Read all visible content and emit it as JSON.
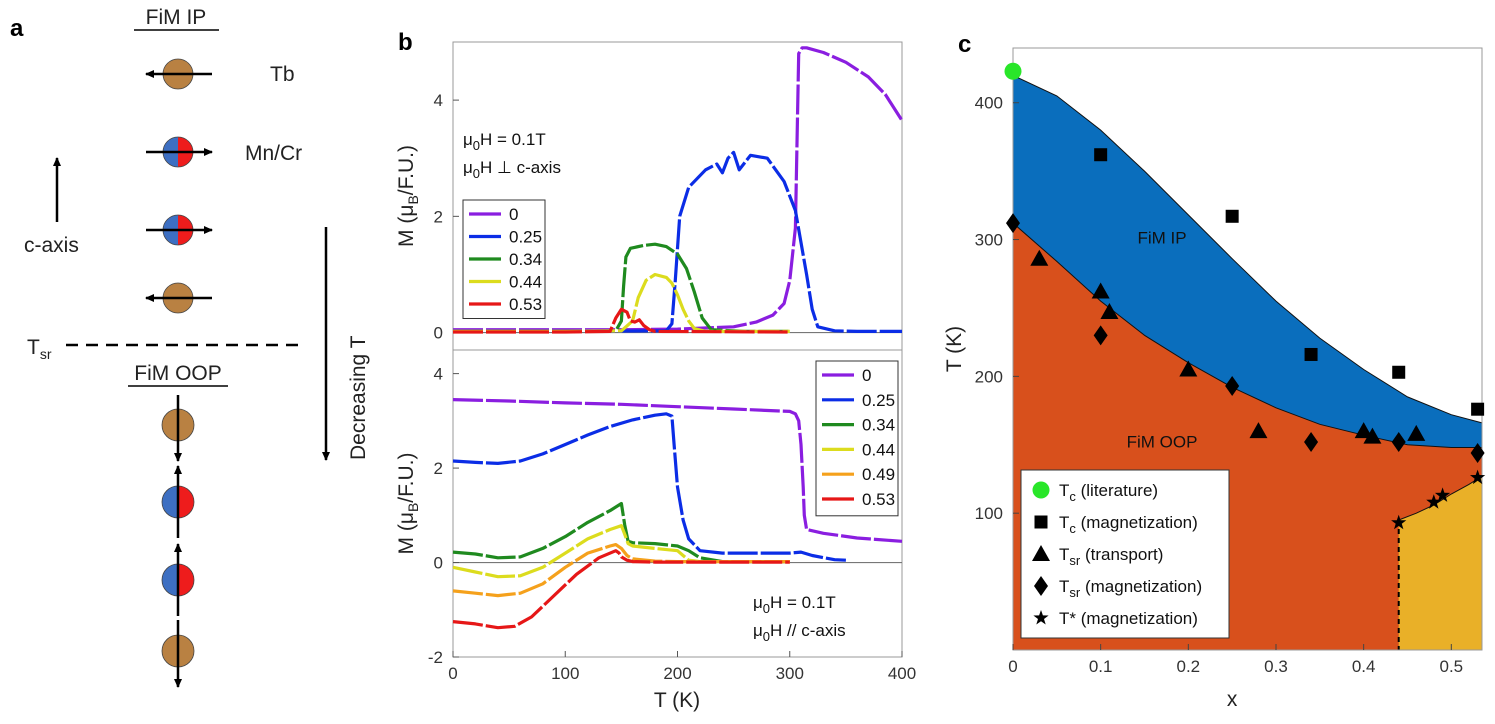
{
  "panels": {
    "a": "a",
    "b": "b",
    "c": "c"
  },
  "diagram": {
    "fim_ip": "FiM IP",
    "fim_oop": "FiM OOP",
    "tb": "Tb",
    "mncr": "Mn/Cr",
    "caxis": "c-axis",
    "tsr_main": "T",
    "tsr_sub": "sr",
    "decreasing": "Decreasing T"
  },
  "colors": {
    "tb": "#b98142",
    "mn_blue": "#3d6fc2",
    "cr_red": "#ee1c1c",
    "blue_region": "#0a6ebd",
    "orange_region": "#d8501c",
    "yellow_region": "#e9b028",
    "green_dot": "#29e629",
    "s0": "#8a1ee0",
    "s025": "#0b2de6",
    "s034": "#1f8a1f",
    "s044": "#dcdc1e",
    "s049": "#f5a11c",
    "s053": "#e61717"
  },
  "chart_data": [
    {
      "id": "b_top",
      "type": "line",
      "title": "",
      "xlabel": "T (K)",
      "ylabel": "M (μB/F.U.)",
      "xlim": [
        0,
        400
      ],
      "ylim": [
        -0.3,
        5.0
      ],
      "yticks": [
        0,
        2,
        4
      ],
      "annotation": [
        "μ0H = 0.1T",
        "μ0H ⊥ c-axis"
      ],
      "legend": [
        "0",
        "0.25",
        "0.34",
        "0.44",
        "0.53"
      ],
      "series": [
        {
          "name": "0",
          "color": "#8a1ee0",
          "x": [
            0,
            50,
            100,
            150,
            200,
            250,
            270,
            285,
            295,
            300,
            305,
            308,
            311,
            315,
            330,
            350,
            370,
            385,
            395,
            400
          ],
          "y": [
            0.05,
            0.05,
            0.05,
            0.05,
            0.06,
            0.1,
            0.18,
            0.3,
            0.5,
            0.9,
            1.8,
            4.8,
            4.9,
            4.9,
            4.82,
            4.65,
            4.4,
            4.1,
            3.8,
            3.65
          ]
        },
        {
          "name": "0.25",
          "color": "#0b2de6",
          "x": [
            0,
            100,
            190,
            195,
            198,
            202,
            210,
            225,
            235,
            240,
            245,
            250,
            255,
            265,
            280,
            295,
            305,
            315,
            320,
            325,
            340,
            360,
            400
          ],
          "y": [
            0.02,
            0.02,
            0.03,
            0.15,
            0.9,
            2.0,
            2.5,
            2.8,
            2.9,
            2.75,
            3.0,
            3.1,
            2.8,
            3.05,
            3.0,
            2.6,
            2.1,
            1.0,
            0.4,
            0.1,
            0.03,
            0.02,
            0.02
          ]
        },
        {
          "name": "0.34",
          "color": "#1f8a1f",
          "x": [
            0,
            100,
            145,
            150,
            152,
            154,
            158,
            170,
            180,
            190,
            200,
            208,
            215,
            222,
            230,
            260,
            300
          ],
          "y": [
            0.02,
            0.02,
            0.03,
            0.2,
            0.8,
            1.3,
            1.45,
            1.5,
            1.52,
            1.48,
            1.35,
            1.1,
            0.7,
            0.25,
            0.05,
            0.02,
            0.02
          ]
        },
        {
          "name": "0.44",
          "color": "#dcdc1e",
          "x": [
            0,
            100,
            150,
            160,
            165,
            172,
            180,
            190,
            195,
            200,
            205,
            210,
            215,
            225,
            300
          ],
          "y": [
            0.02,
            0.02,
            0.03,
            0.2,
            0.6,
            0.9,
            1.0,
            0.95,
            0.85,
            0.65,
            0.4,
            0.2,
            0.07,
            0.02,
            0.02
          ]
        },
        {
          "name": "0.53",
          "color": "#e61717",
          "x": [
            0,
            100,
            140,
            145,
            150,
            155,
            158,
            162,
            166,
            170,
            175,
            180,
            300
          ],
          "y": [
            0.01,
            0.01,
            0.02,
            0.25,
            0.4,
            0.35,
            0.2,
            0.18,
            0.22,
            0.12,
            0.05,
            0.02,
            0.01
          ]
        }
      ]
    },
    {
      "id": "b_bottom",
      "type": "line",
      "title": "",
      "xlabel": "T (K)",
      "ylabel": "M (μB/F.U.)",
      "xlim": [
        0,
        400
      ],
      "ylim": [
        -2,
        4.5
      ],
      "yticks": [
        -2,
        0,
        2,
        4
      ],
      "xticks": [
        0,
        100,
        200,
        300,
        400
      ],
      "annotation": [
        "μ0H = 0.1T",
        "μ0H // c-axis"
      ],
      "legend": [
        "0",
        "0.25",
        "0.34",
        "0.44",
        "0.49",
        "0.53"
      ],
      "series": [
        {
          "name": "0",
          "color": "#8a1ee0",
          "x": [
            0,
            50,
            100,
            150,
            200,
            250,
            300,
            305,
            308,
            310,
            312,
            313,
            315,
            330,
            360,
            400
          ],
          "y": [
            3.45,
            3.42,
            3.38,
            3.35,
            3.3,
            3.25,
            3.2,
            3.15,
            3.0,
            2.5,
            1.6,
            1.0,
            0.7,
            0.62,
            0.52,
            0.45
          ]
        },
        {
          "name": "0.25",
          "color": "#0b2de6",
          "x": [
            0,
            20,
            40,
            60,
            80,
            100,
            120,
            140,
            160,
            180,
            190,
            195,
            197,
            200,
            205,
            210,
            220,
            240,
            270,
            300,
            310,
            320,
            340,
            350
          ],
          "y": [
            2.15,
            2.12,
            2.1,
            2.15,
            2.3,
            2.5,
            2.7,
            2.88,
            3.02,
            3.12,
            3.15,
            3.1,
            2.5,
            1.6,
            0.9,
            0.5,
            0.25,
            0.2,
            0.2,
            0.2,
            0.22,
            0.15,
            0.06,
            0.05
          ]
        },
        {
          "name": "0.34",
          "color": "#1f8a1f",
          "x": [
            0,
            20,
            40,
            60,
            80,
            100,
            120,
            140,
            150,
            153,
            156,
            160,
            180,
            200,
            210,
            220,
            240,
            300
          ],
          "y": [
            0.22,
            0.18,
            0.1,
            0.12,
            0.3,
            0.55,
            0.85,
            1.1,
            1.25,
            0.8,
            0.45,
            0.42,
            0.4,
            0.35,
            0.25,
            0.1,
            0.02,
            0.02
          ]
        },
        {
          "name": "0.44",
          "color": "#dcdc1e",
          "x": [
            0,
            20,
            40,
            60,
            80,
            100,
            120,
            140,
            150,
            153,
            156,
            160,
            180,
            200,
            205,
            210,
            220,
            300
          ],
          "y": [
            -0.1,
            -0.2,
            -0.3,
            -0.28,
            -0.1,
            0.2,
            0.5,
            0.7,
            0.78,
            0.6,
            0.4,
            0.35,
            0.3,
            0.25,
            0.15,
            0.05,
            0.02,
            0.02
          ]
        },
        {
          "name": "0.49",
          "color": "#f5a11c",
          "x": [
            0,
            20,
            40,
            60,
            80,
            100,
            120,
            140,
            145,
            150,
            155,
            160,
            180,
            200,
            300
          ],
          "y": [
            -0.6,
            -0.65,
            -0.7,
            -0.65,
            -0.45,
            -0.1,
            0.2,
            0.35,
            0.38,
            0.3,
            0.15,
            0.08,
            0.03,
            0.02,
            0.02
          ]
        },
        {
          "name": "0.53",
          "color": "#e61717",
          "x": [
            0,
            20,
            40,
            55,
            70,
            90,
            110,
            130,
            145,
            148,
            150,
            155,
            160,
            180,
            300
          ],
          "y": [
            -1.25,
            -1.3,
            -1.38,
            -1.35,
            -1.15,
            -0.7,
            -0.25,
            0.1,
            0.25,
            0.2,
            0.12,
            0.05,
            0.02,
            0.01,
            0.01
          ]
        }
      ]
    },
    {
      "id": "c",
      "type": "scatter",
      "title": "",
      "xlabel": "x",
      "ylabel": "T (K)",
      "xlim": [
        0,
        0.535
      ],
      "ylim": [
        0,
        440
      ],
      "xticks": [
        0,
        0.1,
        0.2,
        0.3,
        0.4,
        0.5
      ],
      "yticks": [
        100,
        200,
        300,
        400
      ],
      "regions": [
        {
          "name": "FiM IP",
          "label": "FiM IP",
          "label_at": [
            0.17,
            297
          ]
        },
        {
          "name": "FiM OOP",
          "label": "FiM OOP",
          "label_at": [
            0.17,
            148
          ]
        }
      ],
      "boundaries": {
        "tc": {
          "x": [
            0,
            0.05,
            0.1,
            0.15,
            0.2,
            0.25,
            0.3,
            0.35,
            0.4,
            0.45,
            0.5,
            0.535
          ],
          "y": [
            420,
            405,
            380,
            350,
            318,
            286,
            255,
            228,
            205,
            185,
            172,
            166
          ]
        },
        "tsr": {
          "x": [
            0,
            0.05,
            0.1,
            0.15,
            0.2,
            0.25,
            0.3,
            0.35,
            0.4,
            0.45,
            0.5,
            0.535
          ],
          "y": [
            312,
            284,
            255,
            230,
            210,
            192,
            177,
            165,
            157,
            150,
            148,
            148
          ]
        },
        "tstar": {
          "x": [
            0.44,
            0.46,
            0.48,
            0.5,
            0.52,
            0.535
          ],
          "y": [
            95,
            100,
            106,
            114,
            121,
            127
          ]
        }
      },
      "series": [
        {
          "name": "Tc (literature)",
          "marker": "circle",
          "x": [
            0
          ],
          "y": [
            423
          ]
        },
        {
          "name": "Tc (magnetization)",
          "marker": "square",
          "x": [
            0.1,
            0.25,
            0.34,
            0.44,
            0.53
          ],
          "y": [
            362,
            317,
            216,
            203,
            176
          ]
        },
        {
          "name": "Tsr (transport)",
          "marker": "triangle",
          "x": [
            0.03,
            0.1,
            0.11,
            0.2,
            0.28,
            0.4,
            0.41,
            0.46
          ],
          "y": [
            286,
            262,
            247,
            205,
            160,
            160,
            156,
            158
          ]
        },
        {
          "name": "Tsr (magnetization)",
          "marker": "diamond",
          "x": [
            0,
            0.1,
            0.25,
            0.34,
            0.44,
            0.53
          ],
          "y": [
            312,
            230,
            193,
            152,
            152,
            144
          ]
        },
        {
          "name": "T* (magnetization)",
          "marker": "star",
          "x": [
            0.44,
            0.48,
            0.49,
            0.53
          ],
          "y": [
            93,
            108,
            113,
            126
          ]
        }
      ],
      "legend": [
        {
          "sym": "T",
          "sub": "c",
          "rest": " (literature)",
          "marker": "circle"
        },
        {
          "sym": "T",
          "sub": "c",
          "rest": " (magnetization)",
          "marker": "square"
        },
        {
          "sym": "T",
          "sub": "sr",
          "rest": " (transport)",
          "marker": "triangle"
        },
        {
          "sym": "T",
          "sub": "sr",
          "rest": " (magnetization)",
          "marker": "diamond"
        },
        {
          "sym": "T*",
          "sub": "",
          "rest": " (magnetization)",
          "marker": "star"
        }
      ]
    }
  ]
}
